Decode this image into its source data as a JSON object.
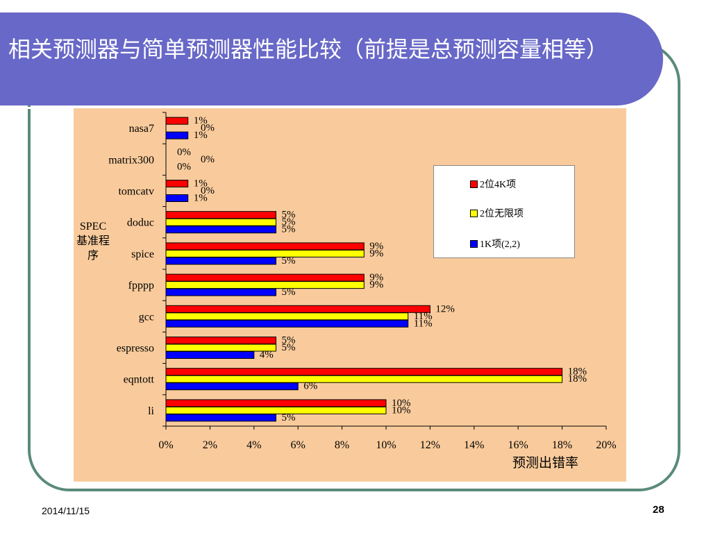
{
  "slide": {
    "title_main": "相关预测器与简单预测器性能比较",
    "title_note": "（前提是总预测容量相等）",
    "footer_date": "2014/11/15",
    "footer_page": "28"
  },
  "colors": {
    "title_bg": "#6868c8",
    "chart_bg": "#f9cb9c",
    "frame": "#5a8a7a"
  },
  "chart_data": {
    "type": "bar",
    "orientation": "horizontal",
    "ylabel": "SPEC基准程序",
    "xlabel": "预测出错率",
    "xlim": [
      0,
      20
    ],
    "x_ticks": [
      "0%",
      "2%",
      "4%",
      "6%",
      "8%",
      "10%",
      "12%",
      "14%",
      "16%",
      "18%",
      "20%"
    ],
    "categories": [
      "nasa7",
      "matrix300",
      "tomcatv",
      "doduc",
      "spice",
      "fpppp",
      "gcc",
      "espresso",
      "eqntott",
      "li"
    ],
    "series": [
      {
        "name": "2位4K项",
        "color": "#ff0000",
        "values": [
          1,
          0,
          1,
          5,
          9,
          9,
          12,
          5,
          18,
          10
        ],
        "labels": [
          "1%",
          "0%",
          "1%",
          "5%",
          "9%",
          "9%",
          "12%",
          "5%",
          "18%",
          "10%"
        ]
      },
      {
        "name": "2位无限项",
        "color": "#ffff00",
        "values": [
          0,
          0,
          0,
          5,
          9,
          9,
          11,
          5,
          18,
          10
        ],
        "labels": [
          "0%",
          "0%",
          "0%",
          "5%",
          "9%",
          "9%",
          "11%",
          "5%",
          "18%",
          "10%"
        ]
      },
      {
        "name": "1K项(2,2)",
        "color": "#0000ff",
        "values": [
          1,
          0,
          1,
          5,
          5,
          5,
          11,
          4,
          6,
          5
        ],
        "labels": [
          "1%",
          "0%",
          "1%",
          "5%",
          "5%",
          "5%",
          "11%",
          "4%",
          "6%",
          "5%"
        ]
      }
    ],
    "legend_position": "top-right",
    "grid": false
  }
}
